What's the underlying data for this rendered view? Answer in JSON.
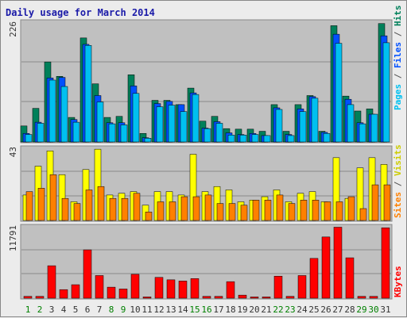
{
  "colors": {
    "hits": "#00805a",
    "files": "#00c0f0",
    "pages": "#00c0f0",
    "visits": "#ffff00",
    "sites": "#ff8000",
    "kbytes": "#ff0000",
    "title": "#1a1aa8",
    "weekend_day": "#008000",
    "weekday": "#333333",
    "panel_bg": "#c0c0c0"
  },
  "chart_data": [
    {
      "type": "bar",
      "title": "Daily usage for March 2014",
      "legend_right": [
        "Hits",
        "Files",
        "Pages"
      ],
      "ymax_label": "226",
      "ymax": 226,
      "categories": [
        "1",
        "2",
        "3",
        "4",
        "5",
        "6",
        "7",
        "8",
        "9",
        "10",
        "11",
        "12",
        "13",
        "14",
        "15",
        "16",
        "17",
        "18",
        "19",
        "20",
        "21",
        "22",
        "23",
        "24",
        "25",
        "26",
        "27",
        "28",
        "29",
        "30",
        "31"
      ],
      "series": [
        {
          "name": "Hits",
          "values": [
            30,
            63,
            150,
            123,
            46,
            195,
            109,
            46,
            48,
            126,
            16,
            78,
            78,
            70,
            101,
            39,
            48,
            25,
            24,
            24,
            20,
            70,
            20,
            70,
            87,
            20,
            218,
            86,
            58,
            62,
            222
          ]
        },
        {
          "name": "Files",
          "values": [
            16,
            37,
            120,
            121,
            42,
            183,
            87,
            36,
            36,
            105,
            8,
            72,
            76,
            70,
            92,
            26,
            38,
            17,
            14,
            16,
            12,
            64,
            14,
            62,
            85,
            18,
            202,
            80,
            36,
            52,
            199
          ]
        },
        {
          "name": "Pages",
          "values": [
            14,
            35,
            116,
            104,
            37,
            181,
            75,
            34,
            32,
            91,
            7,
            66,
            69,
            57,
            89,
            25,
            35,
            13,
            13,
            14,
            12,
            61,
            12,
            57,
            82,
            16,
            185,
            70,
            34,
            52,
            186
          ]
        }
      ]
    },
    {
      "type": "bar",
      "legend_right": [
        "Sites",
        "Visits"
      ],
      "ymax_label": "43",
      "ymax": 43,
      "categories": [
        "1",
        "2",
        "3",
        "4",
        "5",
        "6",
        "7",
        "8",
        "9",
        "10",
        "11",
        "12",
        "13",
        "14",
        "15",
        "16",
        "17",
        "18",
        "19",
        "20",
        "21",
        "22",
        "23",
        "24",
        "25",
        "26",
        "27",
        "28",
        "29",
        "30",
        "31"
      ],
      "series": [
        {
          "name": "Visits",
          "values": [
            15,
            32,
            41,
            27,
            11,
            30,
            42,
            15,
            16,
            17,
            9,
            17,
            17,
            15,
            39,
            17,
            20,
            18,
            11,
            12,
            14,
            18,
            11,
            16,
            17,
            11,
            37,
            13,
            31,
            37,
            33
          ]
        },
        {
          "name": "Sites",
          "values": [
            17,
            19,
            27,
            13,
            10,
            18,
            20,
            13,
            13,
            16,
            5,
            11,
            11,
            14,
            14,
            15,
            10,
            10,
            9,
            12,
            12,
            15,
            10,
            12,
            12,
            11,
            11,
            14,
            7,
            21,
            21
          ]
        }
      ]
    },
    {
      "type": "bar",
      "legend_right": [
        "KBytes"
      ],
      "ymax_label": "11791",
      "ymax": 11791,
      "categories": [
        "1",
        "2",
        "3",
        "4",
        "5",
        "6",
        "7",
        "8",
        "9",
        "10",
        "11",
        "12",
        "13",
        "14",
        "15",
        "16",
        "17",
        "18",
        "19",
        "20",
        "21",
        "22",
        "23",
        "24",
        "25",
        "26",
        "27",
        "28",
        "29",
        "30",
        "31"
      ],
      "series": [
        {
          "name": "KBytes",
          "values": [
            300,
            300,
            5300,
            1400,
            2200,
            7900,
            3700,
            1800,
            1500,
            3900,
            200,
            3400,
            3000,
            2800,
            3200,
            300,
            300,
            2700,
            500,
            200,
            200,
            3600,
            300,
            3700,
            6500,
            10000,
            11600,
            6600,
            300,
            300,
            11500
          ]
        }
      ]
    }
  ]
}
